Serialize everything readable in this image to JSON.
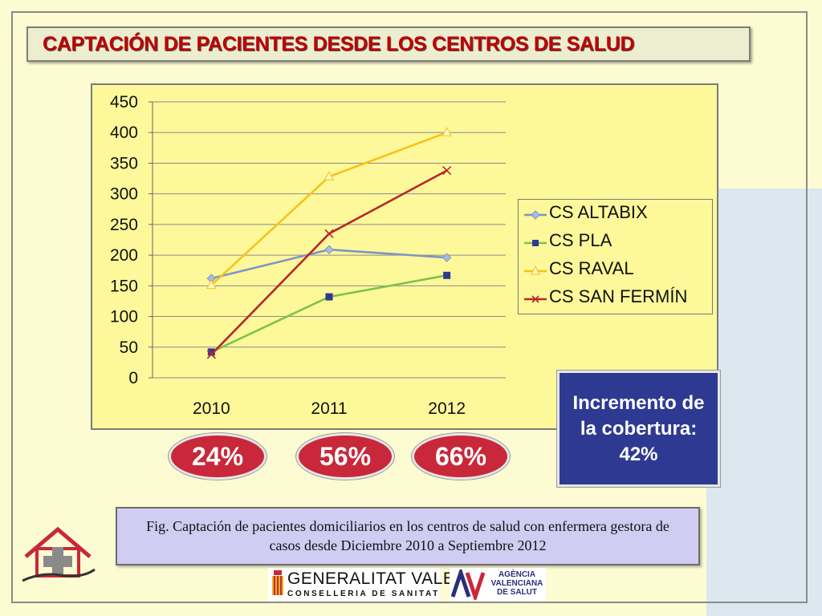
{
  "title": "CAPTACIÓN DE PACIENTES DESDE LOS CENTROS DE SALUD",
  "chart_data": {
    "type": "line",
    "title": "",
    "x": [
      "2010",
      "2011",
      "2012"
    ],
    "ylim": [
      0,
      450
    ],
    "yticks": [
      "0",
      "50",
      "100",
      "150",
      "200",
      "250",
      "300",
      "350",
      "400",
      "450"
    ],
    "grid": true,
    "legend_position": "right",
    "series": [
      {
        "name": "CS ALTABIX",
        "values": [
          162,
          209,
          196
        ],
        "color": "#7f95c6",
        "marker": "diamond"
      },
      {
        "name": "CS PLA",
        "values": [
          42,
          132,
          167
        ],
        "color": "#7fc24a",
        "marker": "square"
      },
      {
        "name": "CS RAVAL",
        "values": [
          151,
          328,
          400
        ],
        "color": "#f6c21b",
        "marker": "triangle"
      },
      {
        "name": "CS SAN FERMÍN",
        "values": [
          38,
          235,
          338
        ],
        "color": "#b7282b",
        "marker": "x"
      }
    ]
  },
  "percentages": [
    "24%",
    "56%",
    "66%"
  ],
  "increment": {
    "text": "Incremento de la cobertura: 42%"
  },
  "caption": "Fig. Captación de pacientes domiciliarios en los centros de salud con enfermera gestora de casos desde Diciembre 2010 a Septiembre 2012",
  "logos": {
    "gv_line1": "GENERALITAT VALENCIANA",
    "gv_line2": "CONSELLERIA DE SANITAT",
    "avs_name": "AGÈNCIA VALENCIANA DE SALUT"
  },
  "colors": {
    "title_red": "#c00000",
    "chart_bg": "#fdf89a",
    "oval_red": "#c8283a",
    "increment_blue": "#2e3a92",
    "caption_bg": "#d0ccf2"
  }
}
